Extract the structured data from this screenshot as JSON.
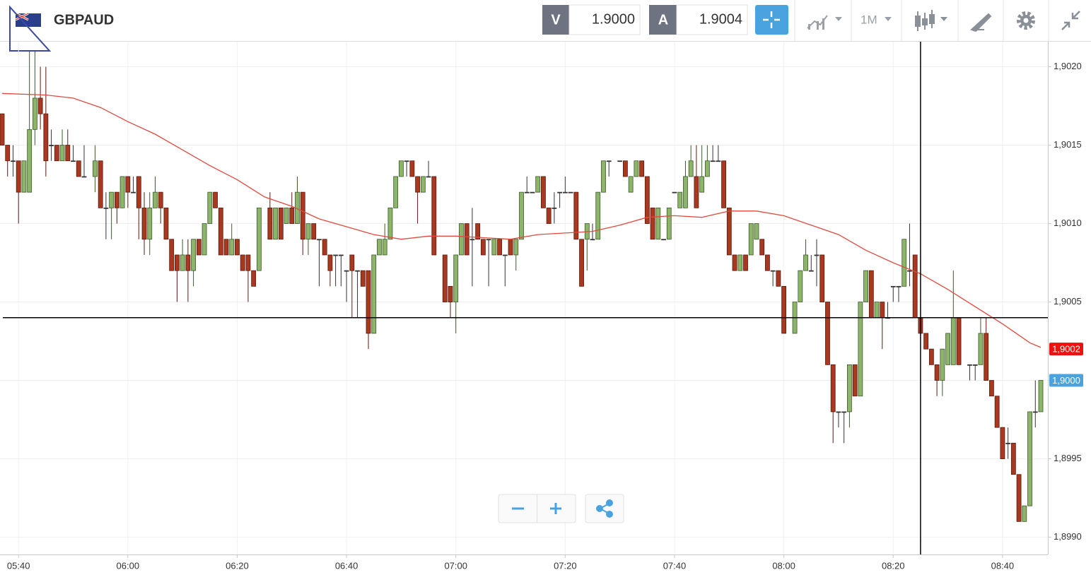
{
  "header": {
    "symbol": "GBPAUD",
    "bid_label": "V",
    "bid": "1.9000",
    "ask_label": "A",
    "ask": "1.9004",
    "timeframe": "1M"
  },
  "chart_data": {
    "type": "candlestick",
    "x": [
      "05:37",
      "05:38",
      "05:39",
      "05:40",
      "05:41",
      "05:42",
      "05:43",
      "05:44",
      "05:45",
      "05:46",
      "05:47",
      "05:48",
      "05:49",
      "05:50",
      "05:51",
      "05:52",
      "05:54",
      "05:55",
      "05:56",
      "05:57",
      "05:58",
      "05:59",
      "06:00",
      "06:01",
      "06:02",
      "06:03",
      "06:04",
      "06:05",
      "06:06",
      "06:07",
      "06:08",
      "06:09",
      "06:10",
      "06:11",
      "06:12",
      "06:13",
      "06:14",
      "06:15",
      "06:16",
      "06:17",
      "06:18",
      "06:19",
      "06:20",
      "06:21",
      "06:22",
      "06:23",
      "06:24",
      "06:26",
      "06:27",
      "06:28",
      "06:29",
      "06:30",
      "06:31",
      "06:32",
      "06:33",
      "06:34",
      "06:35",
      "06:36",
      "06:37",
      "06:38",
      "06:39",
      "06:40",
      "06:41",
      "06:42",
      "06:43",
      "06:44",
      "06:45",
      "06:46",
      "06:47",
      "06:48",
      "06:49",
      "06:50",
      "06:51",
      "06:52",
      "06:53",
      "06:54",
      "06:55",
      "06:56",
      "06:58",
      "06:59",
      "07:00",
      "07:01",
      "07:02",
      "07:03",
      "07:04",
      "07:05",
      "07:06",
      "07:07",
      "07:08",
      "07:09",
      "07:10",
      "07:11",
      "07:12",
      "07:13",
      "07:14",
      "07:15",
      "07:16",
      "07:17",
      "07:18",
      "07:19",
      "07:20",
      "07:21",
      "07:22",
      "07:23",
      "07:24",
      "07:25",
      "07:26",
      "07:27",
      "07:28",
      "07:30",
      "07:31",
      "07:32",
      "07:33",
      "07:34",
      "07:35",
      "07:36",
      "07:37",
      "07:38",
      "07:39",
      "07:40",
      "07:41",
      "07:42",
      "07:43",
      "07:44",
      "07:45",
      "07:46",
      "07:47",
      "07:48",
      "07:49",
      "07:50",
      "07:51",
      "07:52",
      "07:53",
      "07:54",
      "07:55",
      "07:56",
      "07:57",
      "07:58",
      "07:59",
      "08:00",
      "08:02",
      "08:03",
      "08:04",
      "08:05",
      "08:06",
      "08:07",
      "08:08",
      "08:09",
      "08:10",
      "08:11",
      "08:12",
      "08:13",
      "08:14",
      "08:15",
      "08:16",
      "08:17",
      "08:18",
      "08:19",
      "08:20",
      "08:21",
      "08:22",
      "08:23",
      "08:24",
      "08:25",
      "08:26",
      "08:27",
      "08:28",
      "08:29",
      "08:30",
      "08:31",
      "08:32",
      "08:34",
      "08:35",
      "08:36",
      "08:37",
      "08:38",
      "08:39",
      "08:40",
      "08:41",
      "08:42",
      "08:43",
      "08:44",
      "08:45",
      "08:46",
      "08:47"
    ],
    "open": [
      1.9017,
      1.9015,
      1.9014,
      1.9014,
      1.9012,
      1.9012,
      1.9016,
      1.9018,
      1.9017,
      1.9015,
      1.9015,
      1.9014,
      1.9015,
      1.9014,
      1.9014,
      1.9013,
      1.9013,
      1.9014,
      1.9011,
      1.9011,
      1.9012,
      1.9011,
      1.9013,
      1.9012,
      1.9013,
      1.9011,
      1.9009,
      1.9011,
      1.9012,
      1.9011,
      1.9009,
      1.9008,
      1.9007,
      1.9008,
      1.9007,
      1.9009,
      1.9008,
      1.901,
      1.9012,
      1.9011,
      1.9009,
      1.9008,
      1.9009,
      1.9008,
      1.9008,
      1.9007,
      1.9007,
      1.9011,
      1.9009,
      1.9011,
      1.901,
      1.9011,
      1.901,
      1.9012,
      1.9009,
      1.901,
      1.9009,
      1.9009,
      1.9008,
      1.9008,
      1.9008,
      1.9007,
      1.9008,
      1.9007,
      1.9007,
      1.9007,
      1.9003,
      1.9008,
      1.9008,
      1.9009,
      1.9011,
      1.9013,
      1.9014,
      1.9014,
      1.9013,
      1.9012,
      1.9013,
      1.9013,
      1.9008,
      1.9006,
      1.9005,
      1.9008,
      1.901,
      1.9009,
      1.901,
      1.9009,
      1.9009,
      1.9008,
      1.9009,
      1.9008,
      1.9009,
      1.9008,
      1.9009,
      1.9012,
      1.9012,
      1.9012,
      1.9013,
      1.9011,
      1.9011,
      1.9012,
      1.9012,
      1.9012,
      1.9012,
      1.9009,
      1.9009,
      1.9009,
      1.9009,
      1.9012,
      1.9014,
      1.9014,
      1.9014,
      1.9012,
      1.9013,
      1.9014,
      1.9013,
      1.9011,
      1.9009,
      1.9009,
      1.9009,
      1.9012,
      1.9011,
      1.9011,
      1.9013,
      1.9013,
      1.9012,
      1.9013,
      1.9014,
      1.9014,
      1.9014,
      1.9011,
      1.9008,
      1.9007,
      1.9008,
      1.9008,
      1.9009,
      1.9009,
      1.9008,
      1.9007,
      1.9007,
      1.9006,
      1.9003,
      1.9005,
      1.9007,
      1.9007,
      1.9008,
      1.9008,
      1.9005,
      1.9001,
      1.8998,
      1.8998,
      1.8998,
      1.9001,
      1.8999,
      1.9005,
      1.9007,
      1.9004,
      1.9005,
      1.9004,
      1.9006,
      1.9006,
      1.9006,
      1.9007,
      1.9008,
      1.9004,
      1.9003,
      1.9002,
      1.9001,
      1.9,
      1.9001,
      1.9001,
      1.9004,
      1.9001,
      1.9001,
      1.9001,
      1.9003,
      1.9,
      1.8999,
      1.8997,
      1.8996,
      1.8996,
      1.8994,
      1.8991,
      1.8992,
      1.8998,
      1.8998
    ],
    "high": [
      1.9017,
      1.9015,
      1.9015,
      1.9014,
      1.9014,
      1.9021,
      1.9021,
      1.902,
      1.902,
      1.9016,
      1.9015,
      1.9016,
      1.9016,
      1.9015,
      1.9014,
      1.9015,
      1.9015,
      1.9014,
      1.9012,
      1.9012,
      1.9012,
      1.9013,
      1.9013,
      1.9013,
      1.9013,
      1.9012,
      1.9012,
      1.9013,
      1.9012,
      1.9011,
      1.9009,
      1.9008,
      1.9009,
      1.9009,
      1.9009,
      1.9009,
      1.901,
      1.9012,
      1.9012,
      1.9011,
      1.9009,
      1.901,
      1.9009,
      1.9008,
      1.9008,
      1.9007,
      1.9011,
      1.9012,
      1.9011,
      1.9011,
      1.9011,
      1.9012,
      1.9013,
      1.9012,
      1.901,
      1.901,
      1.9009,
      1.9009,
      1.9008,
      1.9008,
      1.9008,
      1.9007,
      1.9008,
      1.9007,
      1.9007,
      1.9007,
      1.9008,
      1.9009,
      1.901,
      1.9011,
      1.9013,
      1.9014,
      1.9014,
      1.9014,
      1.9013,
      1.9013,
      1.9014,
      1.9013,
      1.9008,
      1.9006,
      1.9008,
      1.901,
      1.901,
      1.9011,
      1.901,
      1.9009,
      1.9009,
      1.9009,
      1.9009,
      1.9008,
      1.9009,
      1.9009,
      1.9012,
      1.9013,
      1.9012,
      1.9013,
      1.9013,
      1.9011,
      1.9012,
      1.9012,
      1.9013,
      1.9012,
      1.9012,
      1.9009,
      1.901,
      1.901,
      1.9012,
      1.9014,
      1.9014,
      1.9014,
      1.9014,
      1.9013,
      1.9014,
      1.9014,
      1.9013,
      1.9011,
      1.9011,
      1.9009,
      1.9011,
      1.9012,
      1.9012,
      1.9014,
      1.9015,
      1.9015,
      1.9015,
      1.9015,
      1.9015,
      1.9015,
      1.9014,
      1.9011,
      1.9008,
      1.9008,
      1.9008,
      1.901,
      1.901,
      1.9009,
      1.9008,
      1.9007,
      1.9007,
      1.9006,
      1.9005,
      1.9007,
      1.9009,
      1.9008,
      1.9009,
      1.9008,
      1.9005,
      1.9001,
      1.8998,
      1.8998,
      1.9001,
      1.9001,
      1.9005,
      1.9007,
      1.9007,
      1.9005,
      1.9005,
      1.9005,
      1.9006,
      1.9006,
      1.9009,
      1.901,
      1.9008,
      1.9004,
      1.9003,
      1.9002,
      1.9001,
      1.9002,
      1.9003,
      1.9007,
      1.9004,
      1.9001,
      1.9001,
      1.9004,
      1.9004,
      1.9,
      1.8999,
      1.8997,
      1.8997,
      1.8996,
      1.8994,
      1.8992,
      1.8998,
      1.9,
      1.9
    ],
    "low": [
      1.9015,
      1.9013,
      1.9013,
      1.901,
      1.9012,
      1.9012,
      1.9015,
      1.9016,
      1.9013,
      1.9014,
      1.9014,
      1.9014,
      1.9014,
      1.9014,
      1.9013,
      1.9013,
      1.9012,
      1.9011,
      1.9009,
      1.9009,
      1.901,
      1.9011,
      1.9011,
      1.9012,
      1.9009,
      1.9008,
      1.9008,
      1.9011,
      1.901,
      1.9009,
      1.9007,
      1.9005,
      1.9007,
      1.9005,
      1.9006,
      1.9008,
      1.9008,
      1.901,
      1.9011,
      1.9008,
      1.9008,
      1.9008,
      1.9008,
      1.9007,
      1.9005,
      1.9006,
      1.9007,
      1.9009,
      1.9009,
      1.9009,
      1.901,
      1.901,
      1.901,
      1.9008,
      1.9008,
      1.9009,
      1.9006,
      1.9008,
      1.9006,
      1.9006,
      1.9006,
      1.9005,
      1.9004,
      1.9004,
      1.9006,
      1.9002,
      1.9003,
      1.9008,
      1.9008,
      1.9009,
      1.9011,
      1.9013,
      1.9013,
      1.9013,
      1.901,
      1.9012,
      1.9013,
      1.9008,
      1.9005,
      1.9004,
      1.9003,
      1.9008,
      1.9008,
      1.9006,
      1.9009,
      1.9008,
      1.9006,
      1.9008,
      1.9008,
      1.9006,
      1.9008,
      1.9007,
      1.9009,
      1.9012,
      1.9012,
      1.9012,
      1.9011,
      1.901,
      1.901,
      1.9011,
      1.9012,
      1.9012,
      1.9009,
      1.9006,
      1.9007,
      1.9009,
      1.9009,
      1.9012,
      1.9013,
      1.9014,
      1.9013,
      1.9012,
      1.9013,
      1.9013,
      1.901,
      1.9009,
      1.9009,
      1.9009,
      1.9009,
      1.9012,
      1.9011,
      1.9011,
      1.9013,
      1.9011,
      1.9012,
      1.9013,
      1.9014,
      1.9014,
      1.9011,
      1.9008,
      1.9007,
      1.9007,
      1.9007,
      1.9008,
      1.9009,
      1.9008,
      1.9007,
      1.9006,
      1.9006,
      1.9003,
      1.9003,
      1.9005,
      1.9007,
      1.9007,
      1.9006,
      1.9005,
      1.9001,
      1.8996,
      1.8997,
      1.8996,
      1.8997,
      1.8999,
      1.8999,
      1.9005,
      1.9004,
      1.9004,
      1.9002,
      1.9004,
      1.9005,
      1.9005,
      1.9006,
      1.9006,
      1.9004,
      1.9003,
      1.9002,
      1.9001,
      1.8999,
      1.8999,
      1.9001,
      1.9001,
      1.9001,
      1.9,
      1.9,
      1.9001,
      1.9,
      1.8999,
      1.8997,
      1.8995,
      1.8995,
      1.8994,
      1.8991,
      1.8991,
      1.8992,
      1.8997,
      1.8998
    ],
    "close": [
      1.9015,
      1.9014,
      1.9014,
      1.9012,
      1.9014,
      1.9016,
      1.9018,
      1.9017,
      1.9014,
      1.9015,
      1.9014,
      1.9015,
      1.9014,
      1.9014,
      1.9013,
      1.9013,
      1.9014,
      1.9011,
      1.9011,
      1.9012,
      1.9011,
      1.9013,
      1.9012,
      1.9012,
      1.9011,
      1.9009,
      1.9011,
      1.9012,
      1.9011,
      1.9009,
      1.9007,
      1.9007,
      1.9008,
      1.9007,
      1.9009,
      1.9008,
      1.901,
      1.9012,
      1.9011,
      1.9008,
      1.9008,
      1.9009,
      1.9008,
      1.9007,
      1.9007,
      1.9006,
      1.9011,
      1.9009,
      1.9011,
      1.9009,
      1.9011,
      1.901,
      1.9012,
      1.9009,
      1.901,
      1.9009,
      1.9009,
      1.9008,
      1.9007,
      1.9008,
      1.9008,
      1.9007,
      1.9007,
      1.9007,
      1.9006,
      1.9003,
      1.9008,
      1.9009,
      1.9009,
      1.9011,
      1.9013,
      1.9014,
      1.9014,
      1.9013,
      1.9012,
      1.9013,
      1.9013,
      1.9008,
      1.9005,
      1.9005,
      1.9008,
      1.901,
      1.9008,
      1.9009,
      1.9009,
      1.9008,
      1.9009,
      1.9009,
      1.9008,
      1.9008,
      1.9008,
      1.9009,
      1.9012,
      1.9012,
      1.9012,
      1.9013,
      1.9011,
      1.901,
      1.9011,
      1.9012,
      1.9012,
      1.9012,
      1.9009,
      1.9006,
      1.901,
      1.9009,
      1.9012,
      1.9014,
      1.9014,
      1.9014,
      1.9013,
      1.9013,
      1.9014,
      1.9013,
      1.901,
      1.9009,
      1.9011,
      1.9009,
      1.9011,
      1.9012,
      1.9012,
      1.9013,
      1.9014,
      1.9011,
      1.9013,
      1.9014,
      1.9014,
      1.9014,
      1.9011,
      1.9008,
      1.9007,
      1.9008,
      1.9007,
      1.901,
      1.901,
      1.9008,
      1.9007,
      1.9007,
      1.9006,
      1.9003,
      1.9005,
      1.9007,
      1.9008,
      1.9007,
      1.9008,
      1.9005,
      1.9001,
      1.8998,
      1.8998,
      1.8998,
      1.9001,
      1.8999,
      1.9005,
      1.9007,
      1.9004,
      1.9005,
      1.9004,
      1.9004,
      1.9006,
      1.9006,
      1.9009,
      1.9007,
      1.9004,
      1.9003,
      1.9002,
      1.9001,
      1.9,
      1.9002,
      1.9003,
      1.9004,
      1.9001,
      1.9001,
      1.9001,
      1.9003,
      1.9,
      1.8999,
      1.8997,
      1.8995,
      1.8996,
      1.8994,
      1.8991,
      1.8992,
      1.8998,
      1.8998,
      1.9
    ],
    "up_color": "#8db56a",
    "down_color": "#a8381f",
    "moving_average": {
      "color": "#e04a3f",
      "x": [
        "05:37",
        "05:45",
        "05:50",
        "05:55",
        "06:00",
        "06:05",
        "06:10",
        "06:15",
        "06:20",
        "06:25",
        "06:30",
        "06:35",
        "06:40",
        "06:45",
        "06:50",
        "06:55",
        "07:00",
        "07:05",
        "07:10",
        "07:15",
        "07:20",
        "07:25",
        "07:30",
        "07:35",
        "07:40",
        "07:45",
        "07:50",
        "07:55",
        "08:00",
        "08:05",
        "08:10",
        "08:15",
        "08:20",
        "08:25",
        "08:30",
        "08:35",
        "08:40",
        "08:45",
        "08:47"
      ],
      "values": [
        1.90183,
        1.90182,
        1.9018,
        1.90174,
        1.90165,
        1.90157,
        1.90147,
        1.90137,
        1.90128,
        1.90117,
        1.90111,
        1.90103,
        1.90098,
        1.90093,
        1.9009,
        1.90092,
        1.90092,
        1.90091,
        1.9009,
        1.90093,
        1.90094,
        1.90095,
        1.90099,
        1.90104,
        1.90105,
        1.90104,
        1.90108,
        1.90108,
        1.90105,
        1.90099,
        1.90093,
        1.90083,
        1.90075,
        1.90068,
        1.90058,
        1.90047,
        1.90036,
        1.90024,
        1.90021
      ]
    },
    "crosshair": {
      "x": "08:25",
      "y": 1.9004
    },
    "price_markers": [
      {
        "value": 1.9002,
        "label": "1,9002",
        "color": "#ee1111"
      },
      {
        "value": 1.9,
        "label": "1,9000",
        "color": "#4aa3df"
      }
    ],
    "xlim": [
      "05:37",
      "08:47"
    ],
    "xticks": [
      "05:40",
      "06:00",
      "06:20",
      "06:40",
      "07:00",
      "07:20",
      "07:40",
      "08:00",
      "08:20",
      "08:40"
    ],
    "ylim": [
      1.89889,
      1.90216
    ],
    "yticks": [
      {
        "value": 1.899,
        "label": "1,8990"
      },
      {
        "value": 1.8995,
        "label": "1,8995"
      },
      {
        "value": 1.9,
        "label": "1,9000"
      },
      {
        "value": 1.9005,
        "label": "1,9005"
      },
      {
        "value": 1.901,
        "label": "1,9010"
      },
      {
        "value": 1.9015,
        "label": "1,9015"
      },
      {
        "value": 1.902,
        "label": "1,9020"
      }
    ],
    "grid": true
  }
}
